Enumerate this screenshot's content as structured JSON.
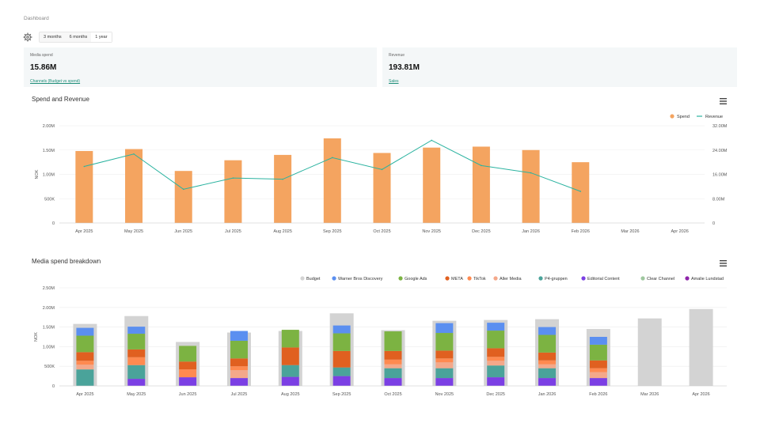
{
  "breadcrumb": "Dashboard",
  "icons": {
    "settings": "gear-icon",
    "menu": "hamburger-menu-icon"
  },
  "range_options": [
    {
      "label": "3 months",
      "active": false
    },
    {
      "label": "6 months",
      "active": false
    },
    {
      "label": "1 year",
      "active": true
    }
  ],
  "kpis": [
    {
      "label": "Media spend",
      "value": "15.86M",
      "link": "Channels (Budget vs spend)"
    },
    {
      "label": "Revenue",
      "value": "193.81M",
      "link": "Sales"
    }
  ],
  "colors": {
    "spend": "#f4a460",
    "revenue": "#2bb3a0",
    "budget": "#d3d3d3",
    "grid": "#ececec",
    "axis": "#555555"
  },
  "chart_data": [
    {
      "type": "bar",
      "title": "Spend and Revenue",
      "categories": [
        "Apr 2025",
        "May 2025",
        "Jun 2025",
        "Jul 2025",
        "Aug 2025",
        "Sep 2025",
        "Oct 2025",
        "Nov 2025",
        "Dec 2025",
        "Jan 2026",
        "Feb 2026",
        "Mar 2026",
        "Apr 2026"
      ],
      "ylabel": "NOK",
      "y_ticks": [
        "0",
        "500K",
        "1.00M",
        "1.50M",
        "2.00M"
      ],
      "y2_ticks": [
        "0",
        "8.00M",
        "16.00M",
        "24.00M",
        "32.00M"
      ],
      "ylim": [
        0,
        2000000
      ],
      "y2lim": [
        0,
        32000000
      ],
      "legend_position": "top-right",
      "series": [
        {
          "name": "Spend",
          "type": "bar",
          "color": "#f4a460",
          "values": [
            1480000,
            1520000,
            1070000,
            1290000,
            1400000,
            1740000,
            1440000,
            1550000,
            1570000,
            1500000,
            1250000,
            null,
            null
          ]
        },
        {
          "name": "Revenue",
          "type": "line",
          "axis": "right",
          "color": "#2bb3a0",
          "values": [
            18600000,
            22700000,
            11100000,
            14800000,
            14400000,
            21500000,
            17600000,
            27200000,
            18900000,
            16500000,
            10400000,
            null,
            null
          ]
        }
      ]
    },
    {
      "type": "bar",
      "title": "Media spend breakdown",
      "categories": [
        "Apr 2025",
        "May 2025",
        "Jun 2025",
        "Jul 2025",
        "Aug 2025",
        "Sep 2025",
        "Oct 2025",
        "Nov 2025",
        "Dec 2025",
        "Jan 2026",
        "Feb 2026",
        "Mar 2026",
        "Apr 2026"
      ],
      "ylabel": "NOK",
      "y_ticks": [
        "0",
        "500K",
        "1.00M",
        "1.50M",
        "2.00M",
        "2.50M"
      ],
      "ylim": [
        0,
        2500000
      ],
      "legend_position": "top-right",
      "budget": {
        "name": "Budget",
        "color": "#d3d3d3",
        "values": [
          1580000,
          1780000,
          1120000,
          1360000,
          1400000,
          1850000,
          1420000,
          1660000,
          1680000,
          1700000,
          1450000,
          1720000,
          1960000
        ]
      },
      "series": [
        {
          "name": "Warner Bros Discovery",
          "color": "#5b8ff0",
          "values": [
            200000,
            180000,
            0,
            250000,
            0,
            200000,
            0,
            250000,
            200000,
            200000,
            200000,
            0,
            0
          ]
        },
        {
          "name": "Google Ads",
          "color": "#7cb342",
          "values": [
            420000,
            400000,
            400000,
            450000,
            450000,
            450000,
            500000,
            450000,
            450000,
            450000,
            400000,
            0,
            0
          ]
        },
        {
          "name": "META",
          "color": "#e06020",
          "values": [
            220000,
            200000,
            200000,
            200000,
            450000,
            420000,
            220000,
            200000,
            220000,
            200000,
            200000,
            0,
            0
          ]
        },
        {
          "name": "TikTok",
          "color": "#ff8a50",
          "values": [
            100000,
            200000,
            200000,
            100000,
            0,
            0,
            120000,
            100000,
            100000,
            100000,
            100000,
            0,
            0
          ]
        },
        {
          "name": "Aller Media",
          "color": "#f4a88a",
          "values": [
            120000,
            0,
            0,
            200000,
            0,
            0,
            100000,
            150000,
            120000,
            100000,
            150000,
            0,
            0
          ]
        },
        {
          "name": "P4-gruppen",
          "color": "#4aa39a",
          "values": [
            420000,
            350000,
            0,
            0,
            300000,
            220000,
            250000,
            250000,
            300000,
            250000,
            0,
            0,
            0
          ]
        },
        {
          "name": "Editorial Content",
          "color": "#7b3fe4",
          "values": [
            0,
            180000,
            220000,
            200000,
            230000,
            250000,
            200000,
            200000,
            220000,
            200000,
            200000,
            0,
            0
          ]
        },
        {
          "name": "Clear Channel",
          "color": "#9fc79f",
          "values": [
            0,
            0,
            0,
            0,
            0,
            0,
            0,
            0,
            0,
            0,
            0,
            0,
            0
          ]
        },
        {
          "name": "Amalie Lundstad",
          "color": "#8e24aa",
          "values": [
            0,
            0,
            0,
            0,
            0,
            0,
            0,
            0,
            0,
            0,
            0,
            0,
            0
          ]
        }
      ]
    }
  ]
}
